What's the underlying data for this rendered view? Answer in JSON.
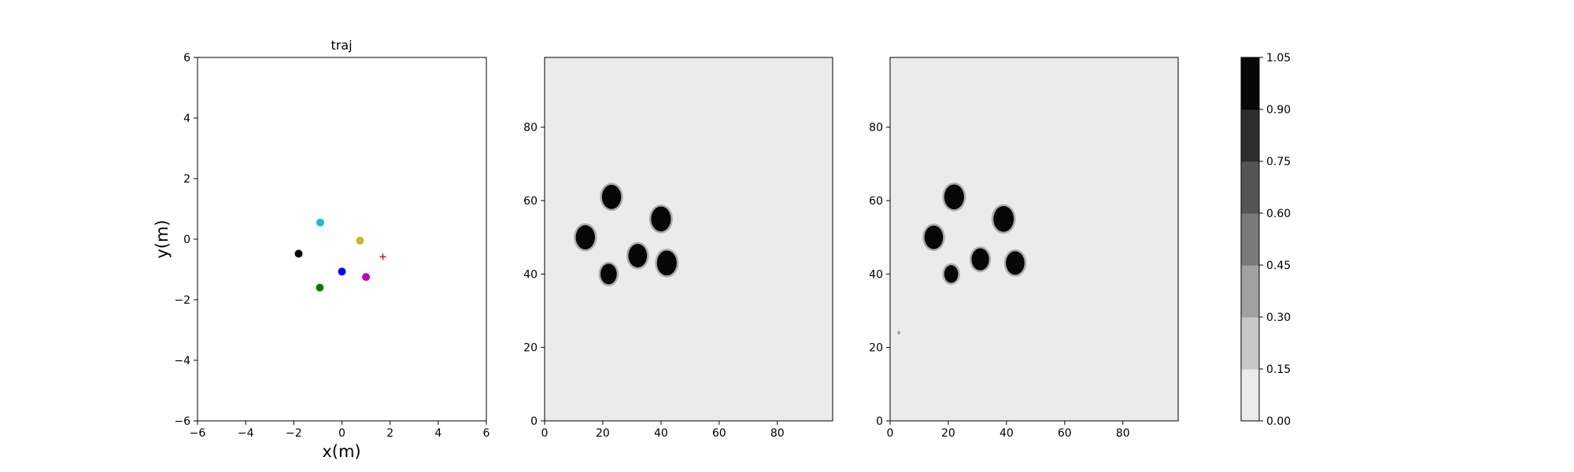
{
  "chart_data": [
    {
      "type": "scatter",
      "title": "traj",
      "xlabel": "x(m)",
      "ylabel": "y(m)",
      "xlim": [
        -6,
        6
      ],
      "ylim": [
        -6,
        6
      ],
      "xticks": [
        "−6",
        "−4",
        "−2",
        "0",
        "2",
        "4",
        "6"
      ],
      "yticks": [
        "−6",
        "−4",
        "−2",
        "0",
        "2",
        "4",
        "6"
      ],
      "grid": false,
      "points": [
        {
          "x": -0.9,
          "y": 0.55,
          "color": "#17becf",
          "marker": "circle"
        },
        {
          "x": 0.75,
          "y": -0.05,
          "color": "#bcbd22",
          "marker": "circle"
        },
        {
          "x": -1.8,
          "y": -0.48,
          "color": "#000000",
          "marker": "circle"
        },
        {
          "x": 0.0,
          "y": -1.07,
          "color": "#0000ff",
          "marker": "circle"
        },
        {
          "x": 1.0,
          "y": -1.25,
          "color": "#bf00bf",
          "marker": "circle"
        },
        {
          "x": -0.92,
          "y": -1.6,
          "color": "#008000",
          "marker": "circle"
        },
        {
          "x": 1.7,
          "y": -0.58,
          "color": "#ff0000",
          "marker": "plus"
        }
      ]
    },
    {
      "type": "heatmap",
      "title": "",
      "xlim": [
        0,
        99
      ],
      "ylim": [
        0,
        99
      ],
      "xticks": [
        "0",
        "20",
        "40",
        "60",
        "80"
      ],
      "yticks": [
        "0",
        "20",
        "40",
        "60",
        "80"
      ],
      "background_value": 0.08,
      "blobs": [
        {
          "x": 23,
          "y": 61,
          "r": 3.3,
          "value": 1.0
        },
        {
          "x": 14,
          "y": 50,
          "r": 3.3,
          "value": 1.0
        },
        {
          "x": 40,
          "y": 55,
          "r": 3.4,
          "value": 1.0
        },
        {
          "x": 32,
          "y": 45,
          "r": 3.2,
          "value": 1.0
        },
        {
          "x": 42,
          "y": 43,
          "r": 3.4,
          "value": 1.0
        },
        {
          "x": 22,
          "y": 40,
          "r": 2.8,
          "value": 1.0
        }
      ]
    },
    {
      "type": "heatmap",
      "title": "",
      "xlim": [
        0,
        99
      ],
      "ylim": [
        0,
        99
      ],
      "xticks": [
        "0",
        "20",
        "40",
        "60",
        "80"
      ],
      "yticks": [
        "0",
        "20",
        "40",
        "60",
        "80"
      ],
      "background_value": 0.08,
      "blobs": [
        {
          "x": 22,
          "y": 61,
          "r": 3.4,
          "value": 1.0
        },
        {
          "x": 15,
          "y": 50,
          "r": 3.2,
          "value": 1.0
        },
        {
          "x": 39,
          "y": 55,
          "r": 3.5,
          "value": 1.0
        },
        {
          "x": 31,
          "y": 44,
          "r": 3.0,
          "value": 1.0
        },
        {
          "x": 43,
          "y": 43,
          "r": 3.2,
          "value": 1.0
        },
        {
          "x": 21,
          "y": 40,
          "r": 2.4,
          "value": 1.0
        },
        {
          "x": 3,
          "y": 24,
          "r": 0.5,
          "value": 0.3
        }
      ]
    },
    {
      "type": "colorbar",
      "levels": [
        "0.00",
        "0.15",
        "0.30",
        "0.45",
        "0.60",
        "0.75",
        "0.90",
        "1.05"
      ],
      "colors": [
        "#ebebeb",
        "#c8c8c8",
        "#a1a1a1",
        "#7a7a7a",
        "#555555",
        "#2d2d2d",
        "#070707"
      ]
    }
  ]
}
